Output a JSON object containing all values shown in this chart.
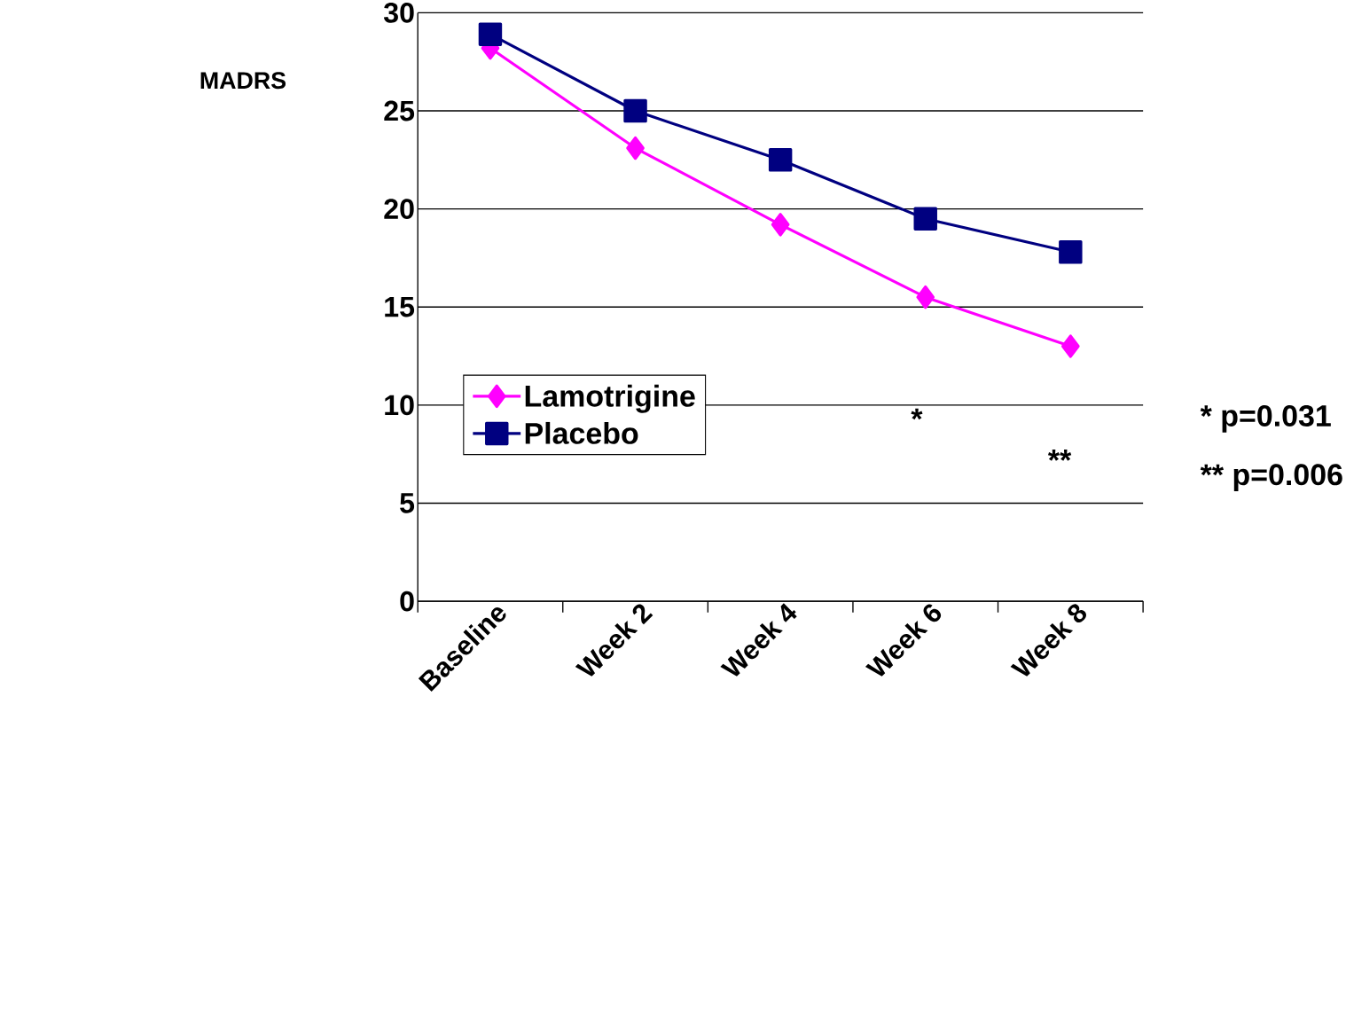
{
  "chart_data": {
    "type": "line",
    "ylabel": "MADRS",
    "categories": [
      "Baseline",
      "Week 2",
      "Week 4",
      "Week 6",
      "Week 8"
    ],
    "series": [
      {
        "name": "Lamotrigine",
        "color": "#ff00ff",
        "marker": "diamond",
        "values": [
          28.2,
          23.1,
          19.2,
          15.5,
          13.0
        ]
      },
      {
        "name": "Placebo",
        "color": "#000080",
        "marker": "square",
        "values": [
          28.9,
          25.0,
          22.5,
          19.5,
          17.8
        ]
      }
    ],
    "ylim": [
      0,
      30
    ],
    "yticks": [
      0,
      5,
      10,
      15,
      20,
      25,
      30
    ],
    "grid": "y",
    "legend": "left",
    "line_style": "solid",
    "annotations": [
      "*",
      "**",
      "* p=0.031",
      "** p=0.006"
    ]
  }
}
